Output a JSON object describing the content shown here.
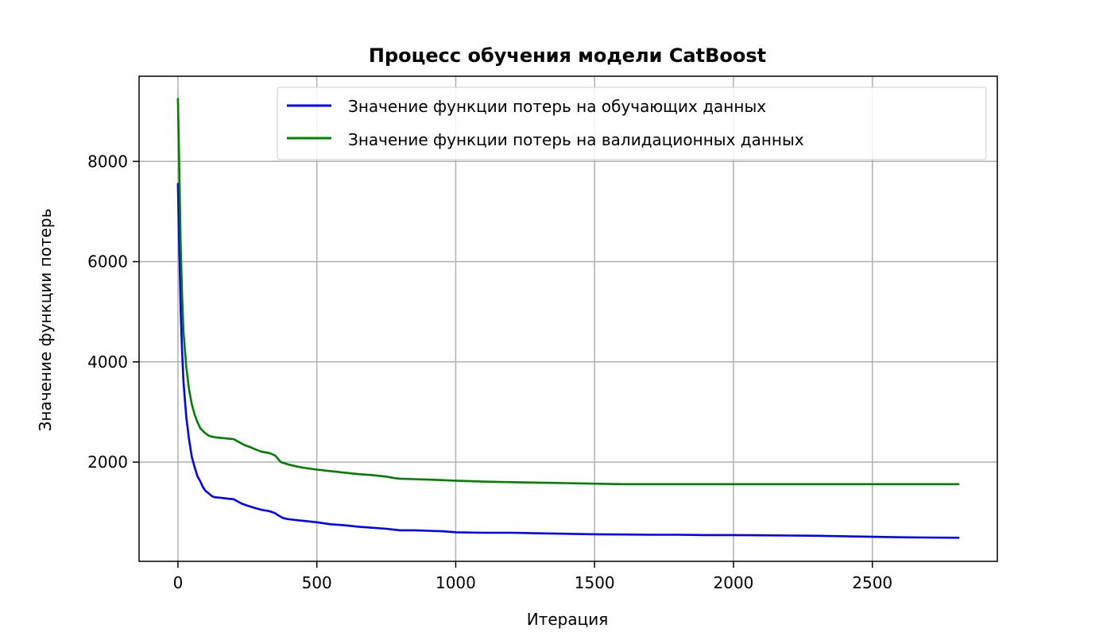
{
  "chart_data": {
    "type": "line",
    "title": "Процесс обучения модели CatBoost",
    "xlabel": "Итерация",
    "ylabel": "Значение функции потерь",
    "xlim": [
      -140,
      2950
    ],
    "ylim": [
      20,
      9700
    ],
    "xticks": [
      0,
      500,
      1000,
      1500,
      2000,
      2500
    ],
    "yticks": [
      2000,
      4000,
      6000,
      8000
    ],
    "grid": true,
    "legend_position": "top-right",
    "series": [
      {
        "name": "Значение функции потерь на обучающих данных",
        "color": "#0000ff",
        "x": [
          0,
          5,
          10,
          15,
          20,
          30,
          40,
          50,
          60,
          70,
          80,
          90,
          100,
          110,
          120,
          130,
          150,
          180,
          200,
          220,
          230,
          250,
          280,
          300,
          330,
          350,
          360,
          380,
          400,
          430,
          450,
          500,
          550,
          600,
          650,
          700,
          750,
          780,
          800,
          850,
          900,
          950,
          980,
          1000,
          1100,
          1200,
          1300,
          1400,
          1500,
          1600,
          1700,
          1800,
          1900,
          2000,
          2100,
          2200,
          2300,
          2400,
          2500,
          2600,
          2700,
          2810
        ],
        "y": [
          7550,
          6200,
          5000,
          4200,
          3600,
          2900,
          2450,
          2100,
          1900,
          1720,
          1620,
          1500,
          1420,
          1380,
          1330,
          1300,
          1290,
          1270,
          1260,
          1200,
          1170,
          1130,
          1080,
          1050,
          1020,
          980,
          940,
          880,
          860,
          840,
          830,
          800,
          760,
          740,
          710,
          690,
          670,
          650,
          640,
          640,
          630,
          620,
          610,
          600,
          590,
          590,
          580,
          570,
          560,
          555,
          550,
          550,
          545,
          545,
          540,
          535,
          530,
          520,
          510,
          500,
          495,
          490
        ]
      },
      {
        "name": "Значение функции потерь на валидационных данных",
        "color": "#008000",
        "x": [
          0,
          5,
          10,
          15,
          20,
          30,
          40,
          50,
          60,
          70,
          80,
          90,
          100,
          110,
          120,
          140,
          160,
          180,
          200,
          220,
          240,
          260,
          280,
          300,
          330,
          350,
          370,
          400,
          430,
          450,
          500,
          550,
          600,
          650,
          700,
          750,
          780,
          800,
          850,
          900,
          950,
          1000,
          1100,
          1200,
          1300,
          1400,
          1500,
          1600,
          1700,
          1800,
          1900,
          2000,
          2100,
          2200,
          2300,
          2400,
          2500,
          2600,
          2700,
          2810
        ],
        "y": [
          9250,
          7800,
          6300,
          5300,
          4600,
          3900,
          3450,
          3150,
          2950,
          2800,
          2680,
          2620,
          2570,
          2530,
          2510,
          2490,
          2480,
          2470,
          2460,
          2400,
          2340,
          2300,
          2250,
          2210,
          2180,
          2130,
          2000,
          1950,
          1910,
          1890,
          1850,
          1820,
          1790,
          1760,
          1740,
          1710,
          1680,
          1670,
          1660,
          1650,
          1640,
          1630,
          1610,
          1600,
          1590,
          1580,
          1570,
          1560,
          1560,
          1560,
          1560,
          1560,
          1560,
          1560,
          1560,
          1560,
          1560,
          1560,
          1560,
          1560
        ]
      }
    ]
  }
}
